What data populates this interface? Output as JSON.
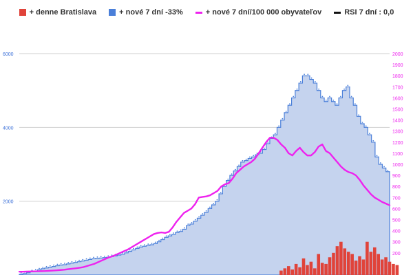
{
  "colors": {
    "bar": "#e0433a",
    "area_fill": "#c5d3ee",
    "area_stroke": "#4a7fd9",
    "line": "#ee22ee",
    "left_axis": "#3a6fd8",
    "right_axis": "#ee22ee",
    "grid": "#cfcfcf"
  },
  "legend": [
    {
      "label": "+ denne Bratislava",
      "swatch": "#e0433a",
      "kind": "box"
    },
    {
      "label": "+ nové 7 dní -33%",
      "swatch": "#4a7fd9",
      "kind": "box"
    },
    {
      "label": "+ nové 7 dní/100 000 obyvateľov",
      "swatch": "#ee22ee",
      "kind": "line"
    },
    {
      "label": "RSI 7 dní : 0,0",
      "swatch": "#111111",
      "kind": "line"
    }
  ],
  "chart_data": {
    "type": "bar",
    "title": "",
    "xlabel": "",
    "ylabel": "",
    "y_left": {
      "min": 0,
      "max": 6000,
      "ticks": [
        "2000",
        "4000",
        "6000"
      ]
    },
    "y_right": {
      "min": 0,
      "max": 2000,
      "ticks": [
        "200",
        "300",
        "400",
        "500",
        "600",
        "700",
        "800",
        "900",
        "1000",
        "1100",
        "1200",
        "1300",
        "1400",
        "1500",
        "1600",
        "1700",
        "1800",
        "1900",
        "2000"
      ]
    },
    "grid": true,
    "legend_position": "top",
    "series": [
      {
        "name": "+ nové 7 dní -33%",
        "type": "area",
        "axis": "left",
        "values": [
          20,
          40,
          60,
          90,
          110,
          140,
          170,
          190,
          210,
          230,
          250,
          270,
          280,
          300,
          320,
          340,
          360,
          380,
          400,
          420,
          440,
          450,
          460,
          470,
          480,
          500,
          520,
          540,
          560,
          600,
          640,
          680,
          720,
          760,
          780,
          800,
          820,
          850,
          900,
          960,
          1020,
          1060,
          1100,
          1150,
          1180,
          1240,
          1340,
          1380,
          1460,
          1540,
          1620,
          1700,
          1800,
          1900,
          2000,
          2200,
          2400,
          2560,
          2700,
          2820,
          2940,
          3060,
          3100,
          3160,
          3200,
          3260,
          3300,
          3400,
          3560,
          3700,
          3800,
          4000,
          4200,
          4400,
          4600,
          4800,
          5000,
          5200,
          5400,
          5400,
          5300,
          5200,
          5000,
          4800,
          4700,
          4800,
          4700,
          4600,
          4800,
          5000,
          5100,
          4800,
          4600,
          4300,
          4100,
          4000,
          3800,
          3600,
          3200,
          3000,
          2900,
          2800
        ]
      },
      {
        "name": "+ nové 7 dní/100 000 obyvateľov",
        "type": "line",
        "axis": "right",
        "values": [
          30,
          30,
          31,
          32,
          33,
          34,
          35,
          36,
          38,
          40,
          42,
          45,
          48,
          52,
          56,
          60,
          65,
          70,
          80,
          90,
          100,
          115,
          130,
          145,
          160,
          170,
          185,
          200,
          215,
          230,
          250,
          270,
          290,
          310,
          330,
          350,
          370,
          380,
          385,
          380,
          390,
          430,
          480,
          520,
          560,
          580,
          600,
          640,
          700,
          705,
          710,
          720,
          740,
          760,
          800,
          820,
          830,
          870,
          920,
          950,
          980,
          1000,
          1020,
          1050,
          1100,
          1150,
          1200,
          1240,
          1240,
          1220,
          1180,
          1150,
          1100,
          1080,
          1120,
          1150,
          1110,
          1080,
          1080,
          1110,
          1160,
          1180,
          1120,
          1100,
          1060,
          1020,
          980,
          950,
          930,
          920,
          900,
          860,
          810,
          770,
          730,
          700,
          680,
          660,
          645,
          630
        ]
      },
      {
        "name": "+ denne Bratislava",
        "type": "bar",
        "axis": "right",
        "x_start_index": 70,
        "values": [
          40,
          60,
          80,
          50,
          100,
          70,
          150,
          90,
          120,
          60,
          190,
          110,
          100,
          160,
          200,
          260,
          300,
          240,
          210,
          190,
          130,
          170,
          140,
          300,
          210,
          250,
          190,
          140,
          160,
          120,
          100,
          90
        ]
      }
    ]
  }
}
